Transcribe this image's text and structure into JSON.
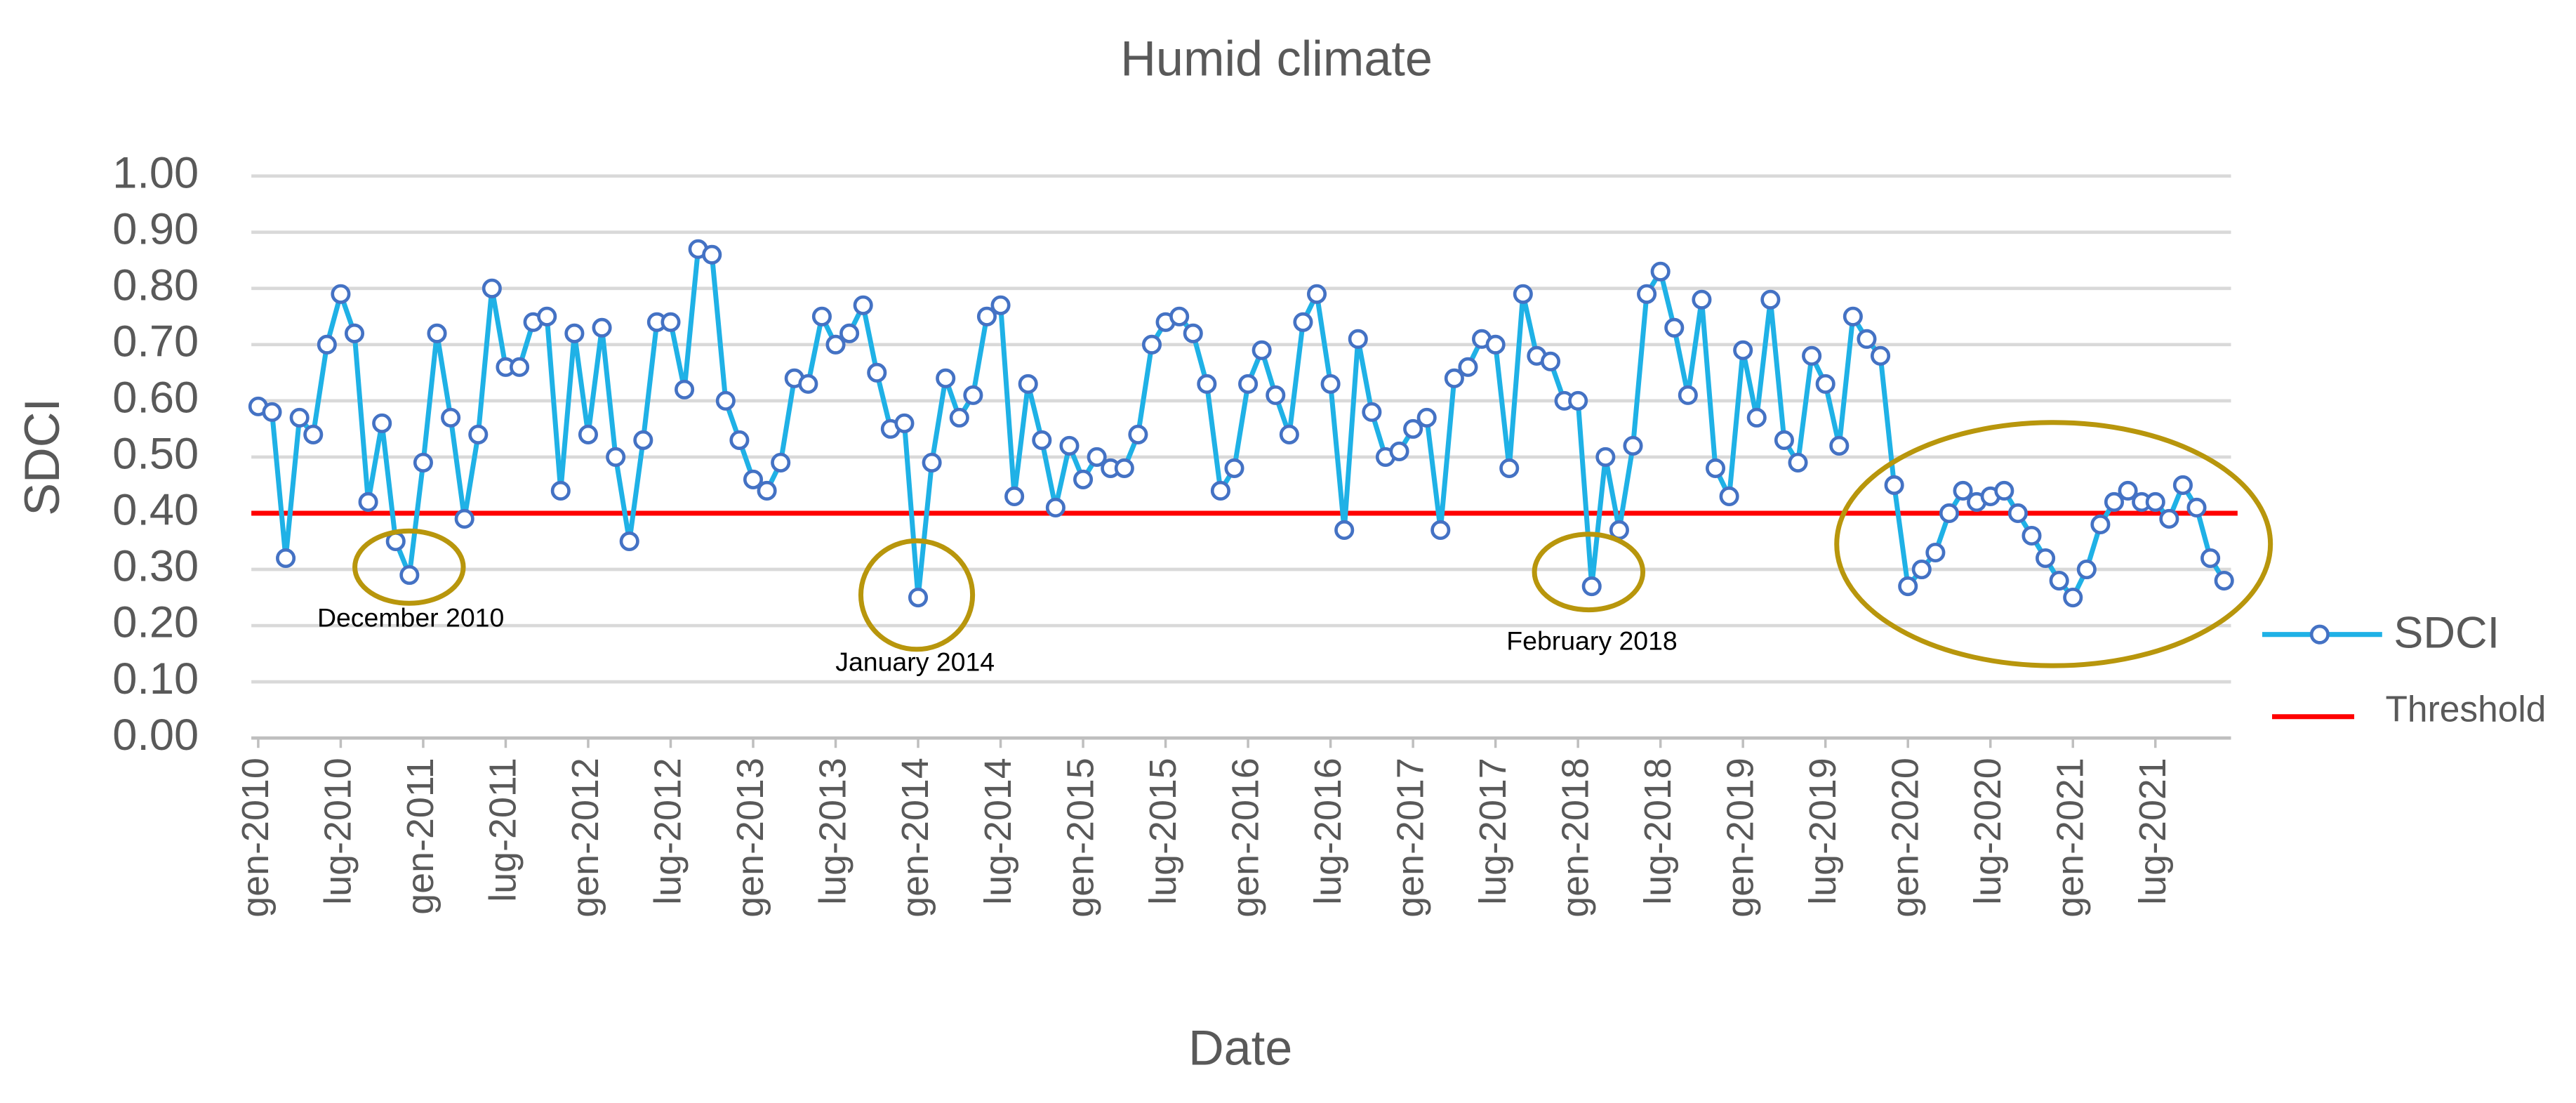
{
  "chart_data": {
    "type": "line",
    "title": "Humid climate",
    "x_label": "Date",
    "y_label": "SDCI",
    "categories": [
      "gen-2010",
      null,
      null,
      null,
      null,
      null,
      "lug-2010",
      null,
      null,
      null,
      null,
      null,
      "gen-2011",
      null,
      null,
      null,
      null,
      null,
      "lug-2011",
      null,
      null,
      null,
      null,
      null,
      "gen-2012",
      null,
      null,
      null,
      null,
      null,
      "lug-2012",
      null,
      null,
      null,
      null,
      null,
      "gen-2013",
      null,
      null,
      null,
      null,
      null,
      "lug-2013",
      null,
      null,
      null,
      null,
      null,
      "gen-2014",
      null,
      null,
      null,
      null,
      null,
      "lug-2014",
      null,
      null,
      null,
      null,
      null,
      "gen-2015",
      null,
      null,
      null,
      null,
      null,
      "lug-2015",
      null,
      null,
      null,
      null,
      null,
      "gen-2016",
      null,
      null,
      null,
      null,
      null,
      "lug-2016",
      null,
      null,
      null,
      null,
      null,
      "gen-2017",
      null,
      null,
      null,
      null,
      null,
      "lug-2017",
      null,
      null,
      null,
      null,
      null,
      "gen-2018",
      null,
      null,
      null,
      null,
      null,
      "lug-2018",
      null,
      null,
      null,
      null,
      null,
      "gen-2019",
      null,
      null,
      null,
      null,
      null,
      "lug-2019",
      null,
      null,
      null,
      null,
      null,
      "gen-2020",
      null,
      null,
      null,
      null,
      null,
      "lug-2020",
      null,
      null,
      null,
      null,
      null,
      "gen-2021",
      null,
      null,
      null,
      null,
      null,
      "lug-2021",
      null,
      null,
      null,
      null,
      null
    ],
    "series": [
      {
        "name": "SDCI",
        "color": "#1fb1e6",
        "marker_color": "#4472c4",
        "values": [
          0.59,
          0.58,
          0.32,
          0.57,
          0.54,
          0.7,
          0.79,
          0.72,
          0.42,
          0.56,
          0.35,
          0.29,
          0.49,
          0.72,
          0.57,
          0.39,
          0.54,
          0.8,
          0.66,
          0.66,
          0.74,
          0.75,
          0.44,
          0.72,
          0.54,
          0.73,
          0.5,
          0.35,
          0.53,
          0.74,
          0.74,
          0.62,
          0.87,
          0.86,
          0.6,
          0.53,
          0.46,
          0.44,
          0.49,
          0.64,
          0.63,
          0.75,
          0.7,
          0.72,
          0.77,
          0.65,
          0.55,
          0.56,
          0.25,
          0.49,
          0.64,
          0.57,
          0.61,
          0.75,
          0.77,
          0.43,
          0.63,
          0.53,
          0.41,
          0.52,
          0.46,
          0.5,
          0.48,
          0.48,
          0.54,
          0.7,
          0.74,
          0.75,
          0.72,
          0.63,
          0.44,
          0.48,
          0.63,
          0.69,
          0.61,
          0.54,
          0.74,
          0.79,
          0.63,
          0.37,
          0.71,
          0.58,
          0.5,
          0.51,
          0.55,
          0.57,
          0.37,
          0.64,
          0.66,
          0.71,
          0.7,
          0.48,
          0.79,
          0.68,
          0.67,
          0.6,
          0.6,
          0.27,
          0.5,
          0.37,
          0.52,
          0.79,
          0.83,
          0.73,
          0.61,
          0.78,
          0.48,
          0.43,
          0.69,
          0.57,
          0.78,
          0.53,
          0.49,
          0.68,
          0.63,
          0.52,
          0.75,
          0.71,
          0.68,
          0.45,
          0.27,
          0.3,
          0.33,
          0.4,
          0.44,
          0.42,
          0.43,
          0.44,
          0.4,
          0.36,
          0.32,
          0.28,
          0.25,
          0.3,
          0.38,
          0.42,
          0.44,
          0.42,
          0.42,
          0.39,
          0.45,
          0.41,
          0.32,
          0.28
        ]
      }
    ],
    "threshold": {
      "name": "Threshold",
      "value": 0.4,
      "color": "#ff0000"
    },
    "annotations": [
      "December 2010",
      "January 2014",
      "February 2018"
    ],
    "ylim": [
      0,
      1
    ],
    "yticks": [
      {
        "value": 0,
        "label": "0.00"
      },
      {
        "value": 0.1,
        "label": "0.10"
      },
      {
        "value": 0.2,
        "label": "0.20"
      },
      {
        "value": 0.3,
        "label": "0.30"
      },
      {
        "value": 0.4,
        "label": "0.40"
      },
      {
        "value": 0.5,
        "label": "0.50"
      },
      {
        "value": 0.6,
        "label": "0.60"
      },
      {
        "value": 0.7,
        "label": "0.70"
      },
      {
        "value": 0.8,
        "label": "0.80"
      },
      {
        "value": 0.9,
        "label": "0.90"
      },
      {
        "value": 1,
        "label": "1.00"
      }
    ],
    "grid": true,
    "legend": "right"
  }
}
